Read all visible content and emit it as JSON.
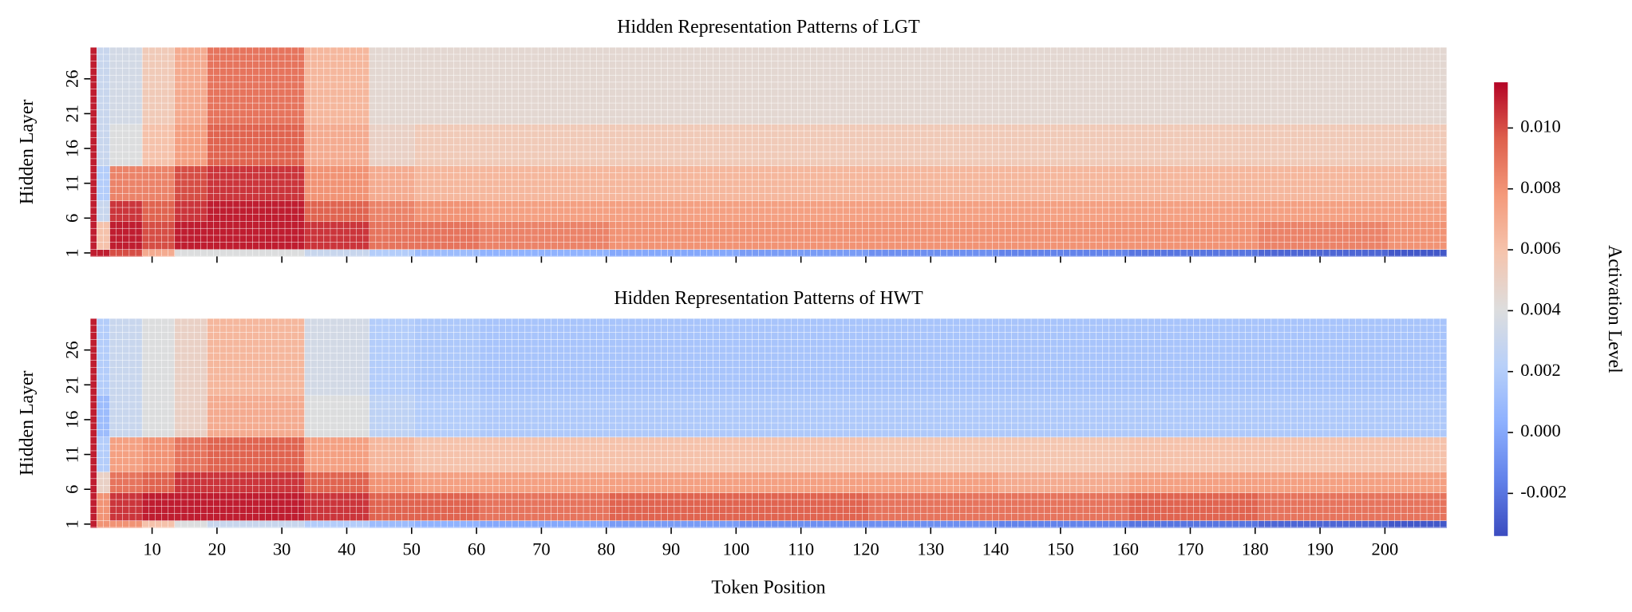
{
  "chart_data": [
    {
      "type": "heatmap",
      "title": "Hidden Representation Patterns of LGT",
      "ylabel": "Hidden Layer",
      "xlim": [
        0.5,
        209.5
      ],
      "ylim": [
        0.5,
        30.5
      ],
      "x_edges": [
        0.5,
        1.5,
        3.5,
        8.5,
        13.5,
        18.5,
        33.5,
        43.5,
        50.5,
        60.5,
        80.5,
        100.5,
        120.5,
        140.5,
        160.5,
        180.5,
        200.5,
        209.5
      ],
      "y_edges": [
        0.5,
        1.5,
        5.5,
        8.5,
        13.5,
        19.5,
        30.5
      ],
      "xticks": [
        10,
        20,
        30,
        40,
        50,
        60,
        70,
        80,
        90,
        100,
        110,
        120,
        130,
        140,
        150,
        160,
        170,
        180,
        190,
        200
      ],
      "yticks": [
        1,
        6,
        11,
        16,
        21,
        26
      ],
      "values": [
        [
          0.011,
          0.011,
          0.01,
          0.007,
          0.004,
          0.004,
          0.003,
          0.002,
          0.001,
          0.0005,
          0.0,
          -0.0005,
          -0.001,
          -0.0015,
          -0.002,
          -0.0025,
          -0.003
        ],
        [
          0.011,
          0.006,
          0.011,
          0.01,
          0.011,
          0.011,
          0.0105,
          0.009,
          0.009,
          0.0085,
          0.008,
          0.008,
          0.008,
          0.008,
          0.008,
          0.0085,
          0.008
        ],
        [
          0.011,
          0.003,
          0.0105,
          0.0095,
          0.0105,
          0.011,
          0.0095,
          0.0085,
          0.008,
          0.0075,
          0.0075,
          0.0075,
          0.0075,
          0.0075,
          0.0075,
          0.0075,
          0.0075
        ],
        [
          0.011,
          0.002,
          0.0085,
          0.0085,
          0.01,
          0.0105,
          0.008,
          0.007,
          0.0065,
          0.0065,
          0.0065,
          0.0065,
          0.0065,
          0.0065,
          0.0065,
          0.0065,
          0.0065
        ],
        [
          0.011,
          0.003,
          0.004,
          0.006,
          0.0075,
          0.0095,
          0.007,
          0.005,
          0.0055,
          0.0055,
          0.0055,
          0.0055,
          0.0055,
          0.0055,
          0.0055,
          0.0055,
          0.0055
        ],
        [
          0.011,
          0.003,
          0.0035,
          0.0055,
          0.007,
          0.009,
          0.0065,
          0.0045,
          0.0045,
          0.0045,
          0.0045,
          0.0045,
          0.0045,
          0.0045,
          0.0045,
          0.0045,
          0.0045
        ]
      ]
    },
    {
      "type": "heatmap",
      "title": "Hidden Representation Patterns of HWT",
      "ylabel": "Hidden Layer",
      "xlabel": "Token Position",
      "xlim": [
        0.5,
        209.5
      ],
      "ylim": [
        0.5,
        30.5
      ],
      "x_edges": [
        0.5,
        1.5,
        3.5,
        8.5,
        13.5,
        18.5,
        33.5,
        43.5,
        50.5,
        60.5,
        80.5,
        100.5,
        120.5,
        140.5,
        160.5,
        180.5,
        200.5,
        209.5
      ],
      "y_edges": [
        0.5,
        1.5,
        5.5,
        8.5,
        13.5,
        19.5,
        30.5
      ],
      "xticks": [
        10,
        20,
        30,
        40,
        50,
        60,
        70,
        80,
        90,
        100,
        110,
        120,
        130,
        140,
        150,
        160,
        170,
        180,
        190,
        200
      ],
      "yticks": [
        1,
        6,
        11,
        16,
        21,
        26
      ],
      "values": [
        [
          0.011,
          0.008,
          0.008,
          0.006,
          0.004,
          0.003,
          0.002,
          0.001,
          0.0005,
          0.0,
          -0.0005,
          -0.001,
          -0.001,
          -0.0015,
          -0.002,
          -0.0025,
          -0.003
        ],
        [
          0.011,
          0.008,
          0.0105,
          0.011,
          0.011,
          0.011,
          0.0105,
          0.0095,
          0.0095,
          0.009,
          0.0095,
          0.0095,
          0.009,
          0.009,
          0.0095,
          0.009,
          0.009
        ],
        [
          0.011,
          0.005,
          0.009,
          0.0095,
          0.0105,
          0.0105,
          0.0095,
          0.008,
          0.0075,
          0.0075,
          0.0075,
          0.0075,
          0.0075,
          0.007,
          0.0075,
          0.0075,
          0.0075
        ],
        [
          0.011,
          0.002,
          0.0075,
          0.008,
          0.009,
          0.0095,
          0.0075,
          0.0065,
          0.006,
          0.006,
          0.006,
          0.006,
          0.0058,
          0.0058,
          0.006,
          0.006,
          0.006
        ],
        [
          0.011,
          0.001,
          0.003,
          0.004,
          0.005,
          0.007,
          0.004,
          0.0025,
          0.002,
          0.0018,
          0.0018,
          0.0018,
          0.0018,
          0.0018,
          0.0018,
          0.0018,
          0.0018
        ],
        [
          0.011,
          0.002,
          0.003,
          0.004,
          0.005,
          0.0065,
          0.0035,
          0.002,
          0.0017,
          0.0015,
          0.0015,
          0.0015,
          0.0015,
          0.0015,
          0.0015,
          0.0015,
          0.0015
        ]
      ]
    }
  ],
  "colorbar": {
    "label": "Activation Level",
    "colormap": "coolwarm",
    "clim": [
      -0.0034,
      0.0115
    ],
    "ticks": [
      -0.002,
      {
        "value": 0,
        "label": "0.000"
      },
      0.002,
      0.004,
      0.006,
      0.008,
      {
        "value": 0.01,
        "label": "0.010"
      }
    ]
  }
}
